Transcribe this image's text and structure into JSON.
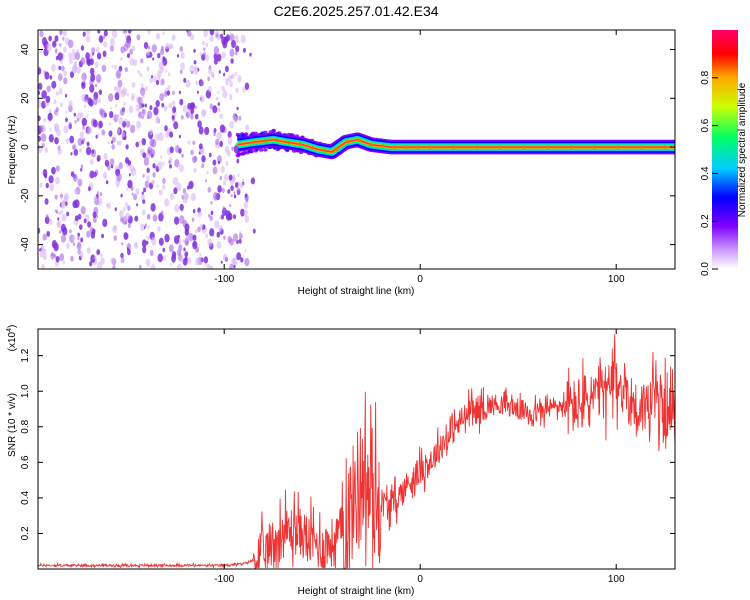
{
  "figure_title": "C2E6.2025.257.01.42.E34",
  "colors": {
    "snr_line": "#ee3333",
    "axis": "#000000",
    "spectrogram_ridge": "#ff3344",
    "scatter": "#7f2fd9"
  },
  "chart_data": [
    {
      "type": "heatmap",
      "name": "spectrogram",
      "xlabel": "Height of straight line (km)",
      "ylabel": "Frequency (Hz)",
      "xlim": [
        -195,
        130
      ],
      "ylim": [
        -50,
        48
      ],
      "xticks": [
        -100,
        0,
        100
      ],
      "yticks": [
        -40,
        -20,
        0,
        20,
        40
      ],
      "xtick_labels": [
        "-100",
        "0",
        "100"
      ],
      "ytick_labels": [
        "-40",
        "-20",
        "0",
        "20",
        "40"
      ],
      "noise_region_x": [
        -195,
        -88
      ],
      "signal_ridge": [
        [
          -93,
          1
        ],
        [
          -85,
          2
        ],
        [
          -75,
          3
        ],
        [
          -68,
          2
        ],
        [
          -60,
          1
        ],
        [
          -52,
          -1
        ],
        [
          -45,
          -2
        ],
        [
          -38,
          2
        ],
        [
          -32,
          3
        ],
        [
          -25,
          1
        ],
        [
          -15,
          0
        ],
        [
          0,
          0
        ],
        [
          50,
          0
        ],
        [
          100,
          0
        ],
        [
          130,
          0
        ]
      ],
      "colorbar": {
        "label": "Normalized spectral amplitude",
        "range": [
          0,
          1
        ],
        "ticks": [
          0.0,
          0.2,
          0.4,
          0.6,
          0.8
        ],
        "tick_labels": [
          "0.0",
          "0.2",
          "0.4",
          "0.6",
          "0.8"
        ],
        "colors": [
          "#ffffff",
          "#cc99ff",
          "#7f00ff",
          "#0000ff",
          "#00ccff",
          "#00ff66",
          "#ccff00",
          "#ffaa00",
          "#ff0000",
          "#ff0066"
        ]
      }
    },
    {
      "type": "line",
      "name": "snr",
      "xlabel": "Height of straight line (km)",
      "ylabel": "SNR (10 * v/v)",
      "scale_label": "(x10",
      "scale_exponent": "4",
      "scale_close": ")",
      "xlim": [
        -195,
        130
      ],
      "ylim": [
        0,
        1.35
      ],
      "xticks": [
        -100,
        0,
        100
      ],
      "xtick_labels": [
        "-100",
        "0",
        "100"
      ],
      "yticks": [
        0.2,
        0.4,
        0.6,
        0.8,
        1.0,
        1.2
      ],
      "ytick_labels": [
        "0.2",
        "0.4",
        "0.6",
        "0.8",
        "1.0",
        "1.2"
      ],
      "series": [
        {
          "name": "SNR",
          "x": [
            -195,
            -180,
            -160,
            -140,
            -120,
            -100,
            -90,
            -85,
            -80,
            -75,
            -70,
            -65,
            -60,
            -55,
            -50,
            -45,
            -40,
            -35,
            -30,
            -25,
            -20,
            -15,
            -10,
            -5,
            0,
            5,
            10,
            15,
            20,
            25,
            30,
            35,
            40,
            45,
            50,
            55,
            60,
            65,
            70,
            75,
            80,
            85,
            90,
            95,
            100,
            105,
            110,
            115,
            120,
            125,
            130
          ],
          "y": [
            0.02,
            0.02,
            0.02,
            0.02,
            0.02,
            0.02,
            0.03,
            0.05,
            0.08,
            0.15,
            0.2,
            0.22,
            0.2,
            0.15,
            0.12,
            0.15,
            0.22,
            0.35,
            0.55,
            0.4,
            0.38,
            0.35,
            0.42,
            0.5,
            0.55,
            0.6,
            0.68,
            0.76,
            0.82,
            0.88,
            0.9,
            0.92,
            0.93,
            0.92,
            0.9,
            0.88,
            0.88,
            0.9,
            0.92,
            0.9,
            0.92,
            0.95,
            0.98,
            1.0,
            1.05,
            1.0,
            0.9,
            0.92,
            0.95,
            0.9,
            0.85
          ]
        }
      ]
    }
  ]
}
